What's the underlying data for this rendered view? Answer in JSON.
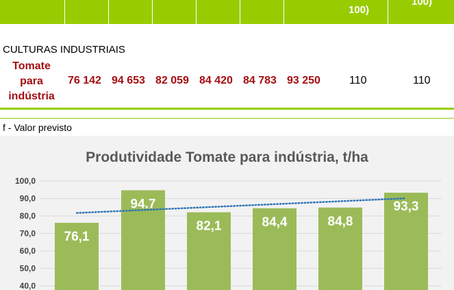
{
  "table": {
    "header_fragments": [
      "100)",
      "100)"
    ],
    "section_title": "CULTURAS INDUSTRIAIS",
    "row": {
      "label_lines": [
        "Tomate",
        "para",
        "indústria"
      ],
      "values": [
        "76 142",
        "94 653",
        "82 059",
        "84 420",
        "84 783",
        "93 250"
      ],
      "index_values": [
        "110",
        "110"
      ]
    },
    "footnote": "f - Valor previsto"
  },
  "colors": {
    "header_green": "#99cc00",
    "bar_green": "#9bbb59",
    "row_red": "#a50e11",
    "trend_blue": "#2e75b6"
  },
  "chart_data": {
    "type": "bar",
    "title": "Produtividade Tomate para indústria, t/ha",
    "values": [
      76.1,
      94.7,
      82.1,
      84.4,
      84.8,
      93.3
    ],
    "data_labels": [
      "76,1",
      "94.7",
      "82,1",
      "84,4",
      "84,8",
      "93,3"
    ],
    "y_ticks": [
      "100,0",
      "90,0",
      "80,0",
      "70,0",
      "60,0",
      "50,0",
      "40,0"
    ],
    "y_tick_values": [
      100,
      90,
      80,
      70,
      60,
      50,
      40
    ],
    "ylim": [
      40,
      100
    ],
    "trendline": "linear-dotted",
    "grid": true
  }
}
